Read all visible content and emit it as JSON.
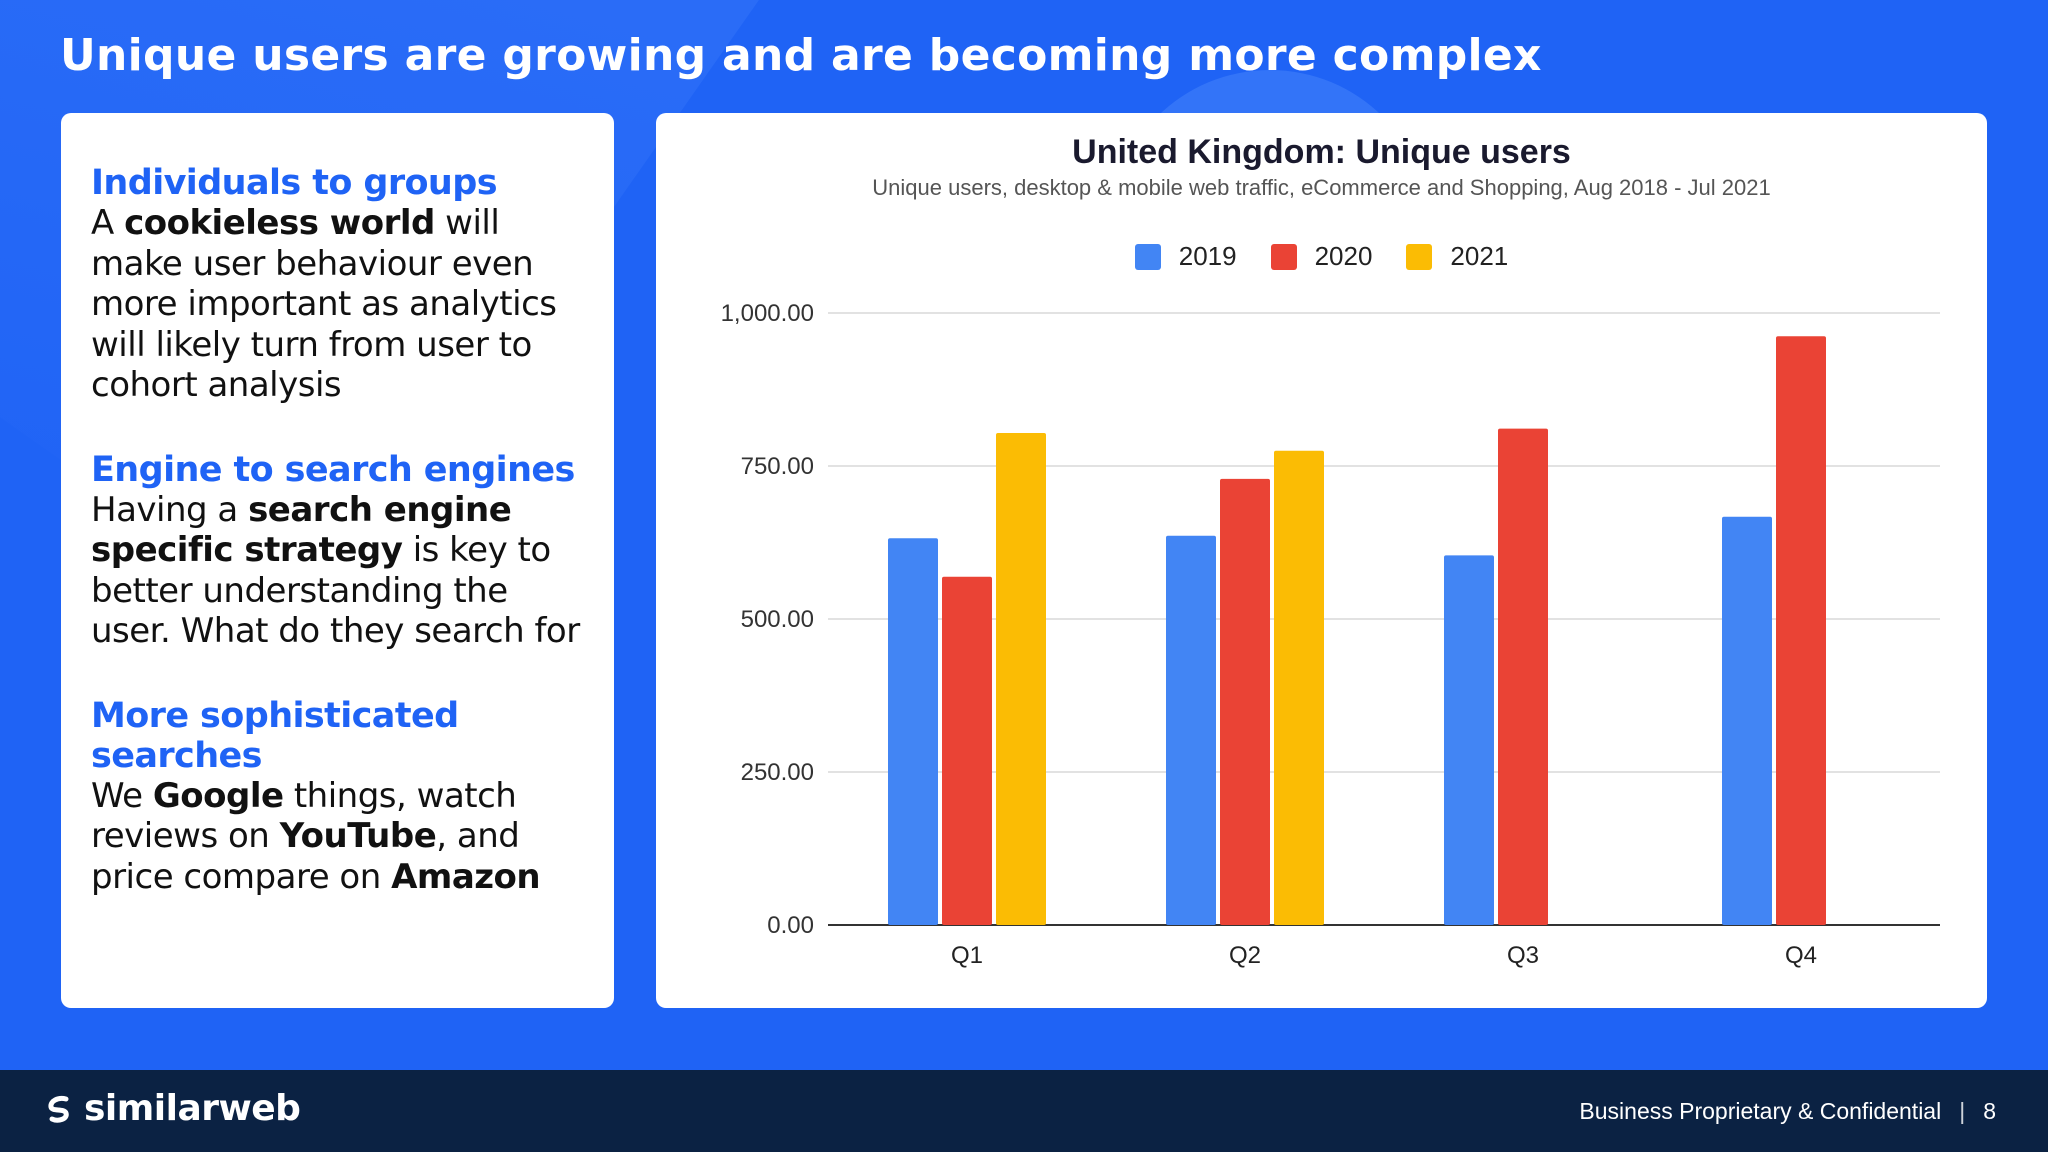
{
  "slide": {
    "title": "Unique users are growing and are becoming more complex"
  },
  "left_panel": {
    "sections": [
      {
        "heading": "Individuals to groups",
        "parts": [
          {
            "text": "A ",
            "bold": false
          },
          {
            "text": "cookieless world",
            "bold": true
          },
          {
            "text": " will make user behaviour even more important as analytics will likely turn from user to cohort analysis",
            "bold": false
          }
        ]
      },
      {
        "heading": "Engine to search engines",
        "parts": [
          {
            "text": "Having a ",
            "bold": false
          },
          {
            "text": "search engine specific strategy",
            "bold": true
          },
          {
            "text": " is key to better understanding the user. What do they search for",
            "bold": false
          }
        ]
      },
      {
        "heading": "More sophisticated searches",
        "parts": [
          {
            "text": "We ",
            "bold": false
          },
          {
            "text": "Google",
            "bold": true
          },
          {
            "text": " things, watch reviews on ",
            "bold": false
          },
          {
            "text": "YouTube",
            "bold": true
          },
          {
            "text": ", and price compare on ",
            "bold": false
          },
          {
            "text": "Amazon",
            "bold": true
          }
        ]
      }
    ]
  },
  "chart_data": {
    "type": "bar",
    "title": "United Kingdom: Unique users",
    "subtitle": "Unique users, desktop & mobile web traffic, eCommerce and Shopping, Aug 2018 - Jul 2021",
    "categories": [
      "Q1",
      "Q2",
      "Q3",
      "Q4"
    ],
    "series": [
      {
        "name": "2019",
        "color": "#4285f4",
        "values": [
          632,
          636,
          604,
          667
        ]
      },
      {
        "name": "2020",
        "color": "#ea4335",
        "values": [
          569,
          729,
          811,
          962
        ]
      },
      {
        "name": "2021",
        "color": "#fbbc04",
        "values": [
          804,
          775,
          null,
          null
        ]
      }
    ],
    "ylim": [
      0,
      1000
    ],
    "yticks": [
      0,
      250,
      500,
      750,
      1000
    ],
    "ytick_labels": [
      "0.00",
      "250.00",
      "500.00",
      "750.00",
      "1,000.00"
    ],
    "grid": true,
    "legend": "top-center",
    "xlabel": "",
    "ylabel": ""
  },
  "footer": {
    "brand": "similarweb",
    "confidential": "Business Proprietary & Confidential",
    "separator": "|",
    "page_number": "8"
  }
}
